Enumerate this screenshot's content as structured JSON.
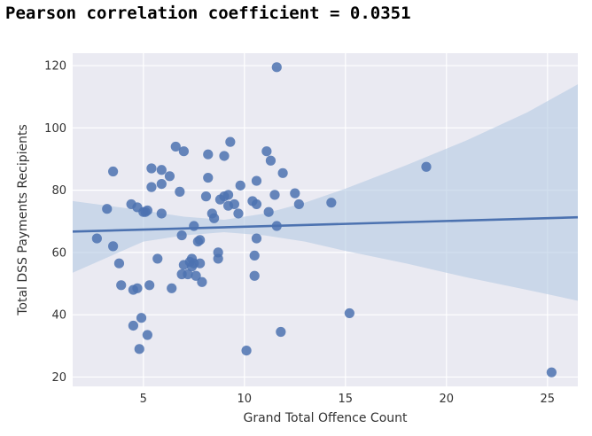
{
  "header": {
    "text": "Pearson correlation coefficient = 0.0351"
  },
  "chart_data": {
    "type": "scatter",
    "title": "",
    "xlabel": "Grand Total Offence Count",
    "ylabel": "Total DSS Payments Recipients",
    "xlim": [
      1.5,
      26.5
    ],
    "ylim": [
      17,
      124
    ],
    "xticks": [
      5,
      10,
      15,
      20,
      25
    ],
    "yticks": [
      20,
      40,
      60,
      80,
      100,
      120
    ],
    "grid": true,
    "point_color": "#4c72b0",
    "line_color": "#4c72b0",
    "band_color": "#b4c9e2",
    "background_color": "#eaeaf2",
    "regression": {
      "x": [
        1.5,
        26.5
      ],
      "y": [
        66.7,
        71.3
      ]
    },
    "confidence_band": {
      "x": [
        1.5,
        5,
        7,
        9,
        11,
        13,
        15,
        18,
        21,
        24,
        26.5
      ],
      "lower": [
        53.5,
        63.5,
        65.5,
        66.5,
        65.5,
        63.5,
        60.5,
        56.5,
        52,
        48,
        44.5
      ],
      "upper": [
        76.5,
        73.5,
        71.5,
        70.5,
        72.5,
        76,
        80.5,
        88,
        96,
        105,
        114
      ]
    },
    "points": [
      {
        "x": 2.7,
        "y": 64.5
      },
      {
        "x": 3.2,
        "y": 74
      },
      {
        "x": 3.5,
        "y": 86
      },
      {
        "x": 3.5,
        "y": 62
      },
      {
        "x": 3.8,
        "y": 56.5
      },
      {
        "x": 3.9,
        "y": 49.5
      },
      {
        "x": 4.4,
        "y": 75.5
      },
      {
        "x": 4.5,
        "y": 48
      },
      {
        "x": 4.5,
        "y": 36.5
      },
      {
        "x": 4.7,
        "y": 48.5
      },
      {
        "x": 4.7,
        "y": 74.5
      },
      {
        "x": 4.8,
        "y": 29
      },
      {
        "x": 4.9,
        "y": 39
      },
      {
        "x": 5.0,
        "y": 73
      },
      {
        "x": 5.1,
        "y": 73
      },
      {
        "x": 5.2,
        "y": 73.5
      },
      {
        "x": 5.2,
        "y": 33.5
      },
      {
        "x": 5.3,
        "y": 49.5
      },
      {
        "x": 5.4,
        "y": 81
      },
      {
        "x": 5.4,
        "y": 87
      },
      {
        "x": 5.7,
        "y": 58
      },
      {
        "x": 5.9,
        "y": 86.5
      },
      {
        "x": 5.9,
        "y": 82
      },
      {
        "x": 5.9,
        "y": 72.5
      },
      {
        "x": 6.3,
        "y": 84.5
      },
      {
        "x": 6.4,
        "y": 48.5
      },
      {
        "x": 6.6,
        "y": 94
      },
      {
        "x": 6.8,
        "y": 79.5
      },
      {
        "x": 6.9,
        "y": 65.5
      },
      {
        "x": 6.9,
        "y": 53
      },
      {
        "x": 7.0,
        "y": 56
      },
      {
        "x": 7.0,
        "y": 92.5
      },
      {
        "x": 7.2,
        "y": 53
      },
      {
        "x": 7.3,
        "y": 57
      },
      {
        "x": 7.4,
        "y": 58
      },
      {
        "x": 7.4,
        "y": 55.5
      },
      {
        "x": 7.5,
        "y": 68.5
      },
      {
        "x": 7.5,
        "y": 56.5
      },
      {
        "x": 7.6,
        "y": 52.5
      },
      {
        "x": 7.7,
        "y": 63.5
      },
      {
        "x": 7.8,
        "y": 64
      },
      {
        "x": 7.8,
        "y": 56.5
      },
      {
        "x": 7.9,
        "y": 50.5
      },
      {
        "x": 8.1,
        "y": 78
      },
      {
        "x": 8.2,
        "y": 84
      },
      {
        "x": 8.2,
        "y": 91.5
      },
      {
        "x": 8.4,
        "y": 72.5
      },
      {
        "x": 8.5,
        "y": 71
      },
      {
        "x": 8.7,
        "y": 58
      },
      {
        "x": 8.7,
        "y": 60
      },
      {
        "x": 8.8,
        "y": 77
      },
      {
        "x": 9.0,
        "y": 78
      },
      {
        "x": 9.0,
        "y": 91
      },
      {
        "x": 9.2,
        "y": 75
      },
      {
        "x": 9.2,
        "y": 78.5
      },
      {
        "x": 9.3,
        "y": 95.5
      },
      {
        "x": 9.5,
        "y": 75.5
      },
      {
        "x": 9.7,
        "y": 72.5
      },
      {
        "x": 9.8,
        "y": 81.5
      },
      {
        "x": 10.1,
        "y": 28.5
      },
      {
        "x": 10.4,
        "y": 76.5
      },
      {
        "x": 10.5,
        "y": 59
      },
      {
        "x": 10.5,
        "y": 52.5
      },
      {
        "x": 10.6,
        "y": 83
      },
      {
        "x": 10.6,
        "y": 64.5
      },
      {
        "x": 10.6,
        "y": 75.5
      },
      {
        "x": 11.1,
        "y": 92.5
      },
      {
        "x": 11.2,
        "y": 73
      },
      {
        "x": 11.3,
        "y": 89.5
      },
      {
        "x": 11.5,
        "y": 78.5
      },
      {
        "x": 11.6,
        "y": 68.5
      },
      {
        "x": 11.6,
        "y": 119.5
      },
      {
        "x": 11.8,
        "y": 34.5
      },
      {
        "x": 11.9,
        "y": 85.5
      },
      {
        "x": 12.5,
        "y": 79
      },
      {
        "x": 12.7,
        "y": 75.5
      },
      {
        "x": 14.3,
        "y": 76
      },
      {
        "x": 15.2,
        "y": 40.5
      },
      {
        "x": 19.0,
        "y": 87.5
      },
      {
        "x": 25.2,
        "y": 21.5
      }
    ]
  }
}
